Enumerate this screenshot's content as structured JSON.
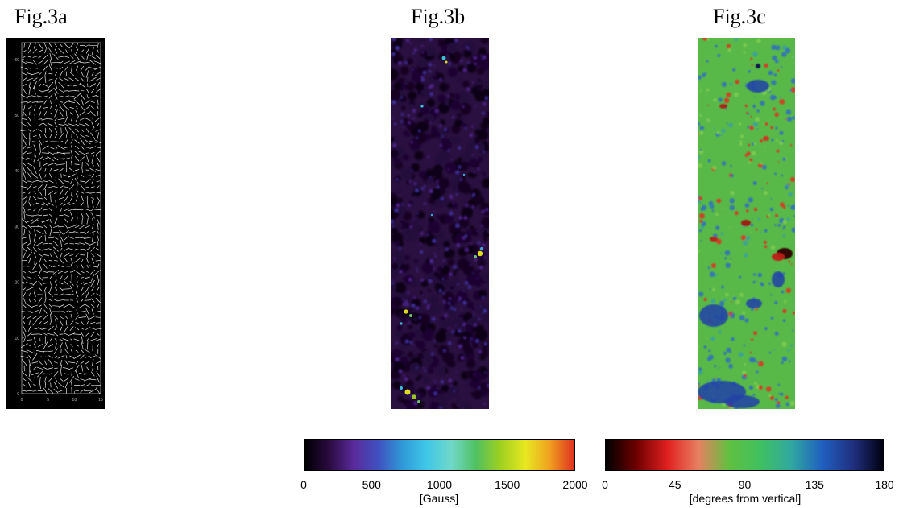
{
  "figures": [
    {
      "title": "Fig.3a",
      "y_ticks": [
        "0",
        "10",
        "20",
        "30",
        "40",
        "50",
        "60"
      ],
      "x_ticks": [
        "0",
        "5",
        "10",
        "15"
      ]
    },
    {
      "title": "Fig.3b"
    },
    {
      "title": "Fig.3c"
    }
  ],
  "colorbars": [
    {
      "name": "field-strength",
      "ticks": [
        "0",
        "500",
        "1000",
        "1500",
        "2000"
      ],
      "label": "[Gauss]",
      "colors": [
        "#000000",
        "#2a0a40",
        "#5a2a9a",
        "#4050c0",
        "#2f9ad8",
        "#40c8e8",
        "#70d8c8",
        "#50c060",
        "#a0d020",
        "#e8e820",
        "#f0a020",
        "#e03020"
      ]
    },
    {
      "name": "inclination",
      "ticks": [
        "0",
        "45",
        "90",
        "135",
        "180"
      ],
      "label": "[degrees from vertical]",
      "colors": [
        "#000000",
        "#700000",
        "#e02020",
        "#e88060",
        "#60c040",
        "#40c060",
        "#30a8a0",
        "#2060c0",
        "#203080",
        "#000010"
      ]
    }
  ]
}
